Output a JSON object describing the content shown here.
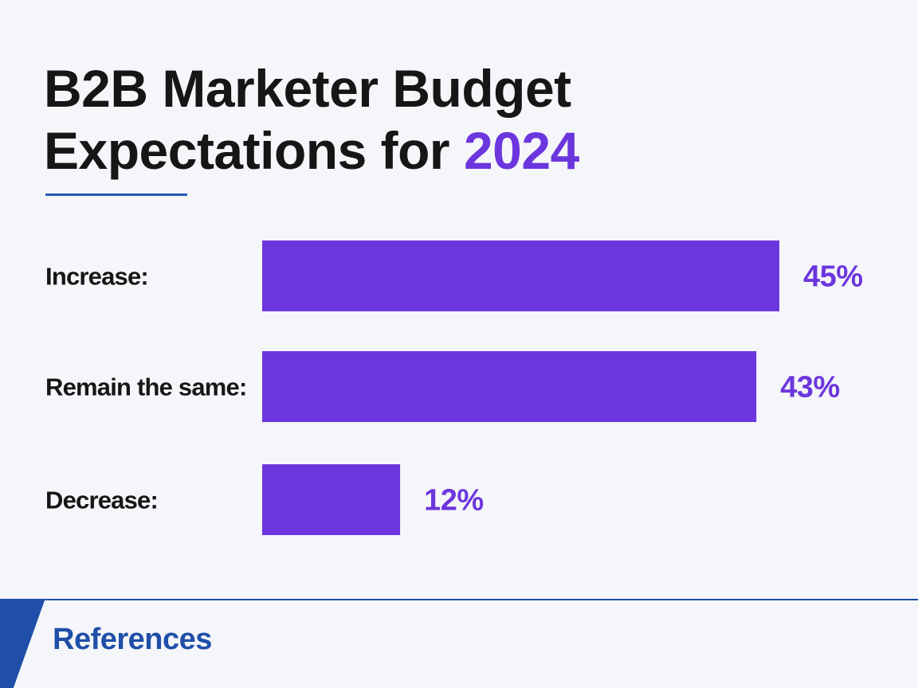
{
  "title": {
    "line1": "B2B Marketer Budget",
    "line2_prefix": "Expectations for ",
    "line2_highlight": "2024"
  },
  "colors": {
    "bar": "#6c36de",
    "value_text": "#6c36de",
    "accent": "#6c36de",
    "rule": "#2458b8",
    "footer": "#1f4fa8"
  },
  "chart_data": {
    "type": "bar",
    "orientation": "horizontal",
    "title": "B2B Marketer Budget Expectations for 2024",
    "categories": [
      "Increase:",
      "Remain the same:",
      "Decrease:"
    ],
    "values": [
      45,
      43,
      12
    ],
    "value_labels": [
      "45%",
      "43%",
      "12%"
    ],
    "unit": "%",
    "xlim": [
      0,
      45
    ],
    "grid": false,
    "legend": "none"
  },
  "footer": {
    "references_label": "References"
  }
}
